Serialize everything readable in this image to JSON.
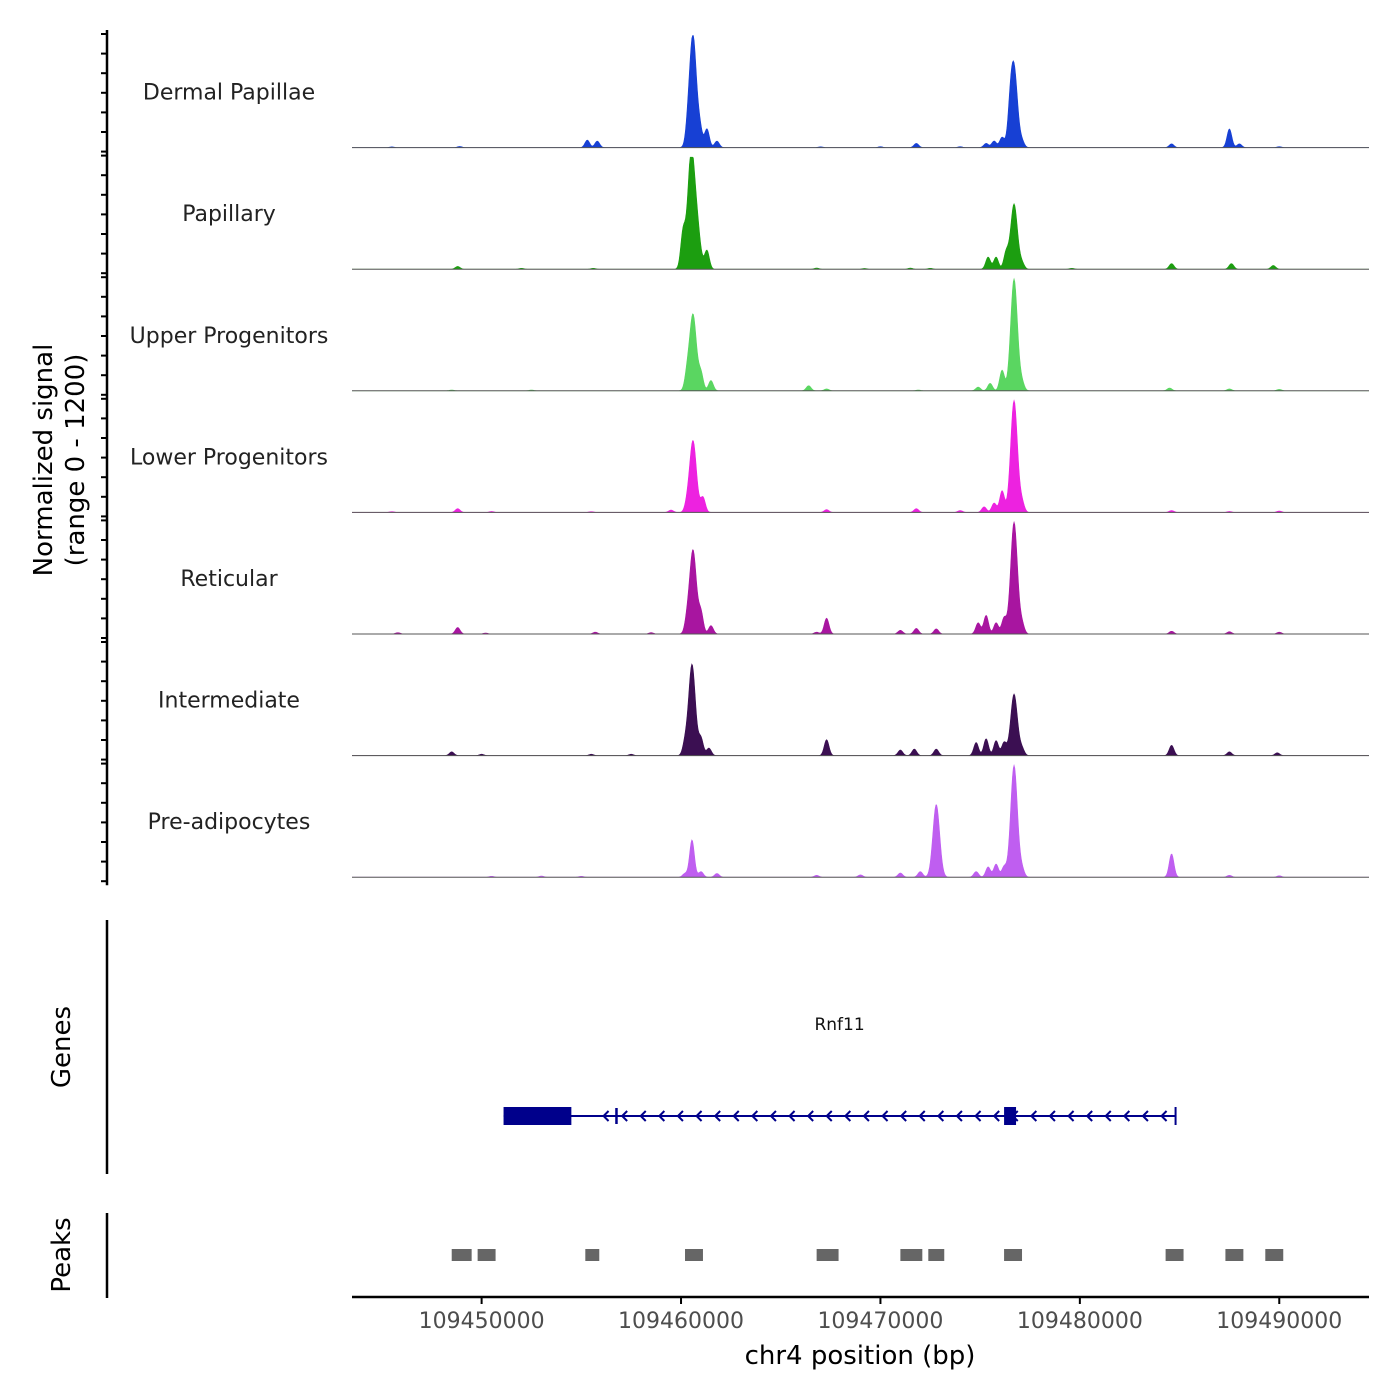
{
  "chart_data": {
    "type": "area",
    "chromosome": "chr4",
    "xlim": [
      109443500,
      109494500
    ],
    "xlabel": "chr4 position (bp)",
    "x_ticks": [
      109450000,
      109460000,
      109470000,
      109480000,
      109490000
    ],
    "x_tick_labels": [
      "109450000",
      "109460000",
      "109470000",
      "109480000",
      "109490000"
    ],
    "ylabel_line1": "Normalized signal",
    "ylabel_line2": "(range 0 - 1200)",
    "ylim": [
      0,
      1200
    ],
    "tracks": [
      {
        "name": "Dermal Papillae",
        "color": "#1740d4",
        "peaks": [
          [
            109445500,
            8
          ],
          [
            109448900,
            12
          ],
          [
            109455300,
            80
          ],
          [
            109455800,
            70
          ],
          [
            109460350,
            150
          ],
          [
            109460600,
            1200
          ],
          [
            109460950,
            180
          ],
          [
            109461300,
            200
          ],
          [
            109461800,
            70
          ],
          [
            109467000,
            8
          ],
          [
            109470000,
            10
          ],
          [
            109471800,
            45
          ],
          [
            109474000,
            10
          ],
          [
            109475300,
            45
          ],
          [
            109475700,
            70
          ],
          [
            109476100,
            110
          ],
          [
            109476500,
            250
          ],
          [
            109476700,
            850
          ],
          [
            109477100,
            60
          ],
          [
            109484600,
            40
          ],
          [
            109487500,
            200
          ],
          [
            109488000,
            40
          ],
          [
            109490000,
            10
          ]
        ]
      },
      {
        "name": "Papillary",
        "color": "#1c9e10",
        "peaks": [
          [
            109448800,
            30
          ],
          [
            109452000,
            10
          ],
          [
            109455600,
            10
          ],
          [
            109460100,
            380
          ],
          [
            109460500,
            1200
          ],
          [
            109460800,
            450
          ],
          [
            109461300,
            200
          ],
          [
            109466800,
            12
          ],
          [
            109469200,
            8
          ],
          [
            109471500,
            12
          ],
          [
            109472500,
            10
          ],
          [
            109475400,
            130
          ],
          [
            109475800,
            130
          ],
          [
            109476300,
            170
          ],
          [
            109476700,
            700
          ],
          [
            109477100,
            60
          ],
          [
            109479600,
            10
          ],
          [
            109484600,
            60
          ],
          [
            109487600,
            60
          ],
          [
            109489700,
            40
          ]
        ]
      },
      {
        "name": "Upper Progenitors",
        "color": "#5ad661",
        "peaks": [
          [
            109448500,
            8
          ],
          [
            109452500,
            8
          ],
          [
            109460300,
            150
          ],
          [
            109460600,
            820
          ],
          [
            109461000,
            180
          ],
          [
            109461500,
            110
          ],
          [
            109466400,
            55
          ],
          [
            109467300,
            20
          ],
          [
            109471900,
            8
          ],
          [
            109474900,
            40
          ],
          [
            109475500,
            80
          ],
          [
            109476100,
            220
          ],
          [
            109476700,
            1200
          ],
          [
            109477100,
            80
          ],
          [
            109484500,
            30
          ],
          [
            109487500,
            20
          ],
          [
            109490000,
            15
          ]
        ]
      },
      {
        "name": "Lower Progenitors",
        "color": "#ed22e0",
        "peaks": [
          [
            109445500,
            8
          ],
          [
            109448800,
            40
          ],
          [
            109450500,
            10
          ],
          [
            109455500,
            8
          ],
          [
            109459500,
            25
          ],
          [
            109460300,
            70
          ],
          [
            109460600,
            770
          ],
          [
            109461100,
            160
          ],
          [
            109467300,
            30
          ],
          [
            109471800,
            40
          ],
          [
            109474000,
            20
          ],
          [
            109475200,
            60
          ],
          [
            109475700,
            100
          ],
          [
            109476100,
            230
          ],
          [
            109476700,
            1200
          ],
          [
            109477100,
            100
          ],
          [
            109484600,
            20
          ],
          [
            109487500,
            10
          ],
          [
            109490000,
            15
          ]
        ]
      },
      {
        "name": "Reticular",
        "color": "#a815a0",
        "peaks": [
          [
            109445800,
            15
          ],
          [
            109448800,
            70
          ],
          [
            109450200,
            10
          ],
          [
            109455700,
            20
          ],
          [
            109458500,
            15
          ],
          [
            109460300,
            120
          ],
          [
            109460600,
            900
          ],
          [
            109461000,
            220
          ],
          [
            109461500,
            90
          ],
          [
            109466800,
            20
          ],
          [
            109467300,
            170
          ],
          [
            109471000,
            40
          ],
          [
            109471800,
            60
          ],
          [
            109472800,
            55
          ],
          [
            109474900,
            120
          ],
          [
            109475300,
            200
          ],
          [
            109475800,
            120
          ],
          [
            109476200,
            170
          ],
          [
            109476700,
            1200
          ],
          [
            109477100,
            100
          ],
          [
            109484600,
            30
          ],
          [
            109487500,
            25
          ],
          [
            109490000,
            20
          ]
        ]
      },
      {
        "name": "Intermediate",
        "color": "#3b0f52",
        "peaks": [
          [
            109448500,
            40
          ],
          [
            109450000,
            15
          ],
          [
            109455500,
            15
          ],
          [
            109457500,
            15
          ],
          [
            109460200,
            120
          ],
          [
            109460550,
            980
          ],
          [
            109461000,
            180
          ],
          [
            109461400,
            80
          ],
          [
            109467300,
            170
          ],
          [
            109471000,
            60
          ],
          [
            109471700,
            70
          ],
          [
            109472800,
            70
          ],
          [
            109474800,
            140
          ],
          [
            109475300,
            180
          ],
          [
            109475800,
            160
          ],
          [
            109476200,
            140
          ],
          [
            109476700,
            660
          ],
          [
            109477100,
            70
          ],
          [
            109484600,
            110
          ],
          [
            109487500,
            40
          ],
          [
            109489900,
            30
          ]
        ]
      },
      {
        "name": "Pre-adipocytes",
        "color": "#bf5ef0",
        "peaks": [
          [
            109450500,
            10
          ],
          [
            109453000,
            12
          ],
          [
            109455000,
            10
          ],
          [
            109460200,
            40
          ],
          [
            109460550,
            400
          ],
          [
            109461000,
            60
          ],
          [
            109461800,
            40
          ],
          [
            109466800,
            20
          ],
          [
            109469000,
            25
          ],
          [
            109471000,
            45
          ],
          [
            109472000,
            60
          ],
          [
            109472800,
            780
          ],
          [
            109474800,
            60
          ],
          [
            109475400,
            110
          ],
          [
            109475800,
            140
          ],
          [
            109476200,
            110
          ],
          [
            109476700,
            1200
          ],
          [
            109477100,
            80
          ],
          [
            109484600,
            250
          ],
          [
            109487500,
            20
          ],
          [
            109490000,
            15
          ]
        ]
      }
    ],
    "genes_label": "Genes",
    "gene": {
      "name": "Rnf11",
      "strand": "-",
      "start": 109451100,
      "end": 109484800,
      "exons": [
        [
          109451100,
          109454500
        ],
        [
          109456700,
          109456800
        ],
        [
          109476200,
          109476800
        ]
      ],
      "color": "#00008b"
    },
    "peaks_label": "Peaks",
    "peak_regions": [
      [
        109448500,
        109449500
      ],
      [
        109449800,
        109450700
      ],
      [
        109455200,
        109455900
      ],
      [
        109460200,
        109461100
      ],
      [
        109466800,
        109467900
      ],
      [
        109471000,
        109472100
      ],
      [
        109472400,
        109473200
      ],
      [
        109476200,
        109477100
      ],
      [
        109484300,
        109485200
      ],
      [
        109487300,
        109488200
      ],
      [
        109489300,
        109490200
      ]
    ],
    "peak_color": "#666666"
  }
}
